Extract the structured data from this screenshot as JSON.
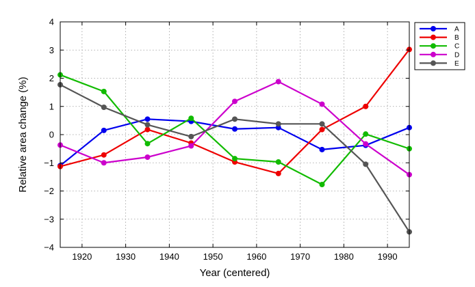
{
  "chart_data": {
    "type": "line",
    "xlabel": "Year (centered)",
    "ylabel": "Relative area change (%)",
    "xlim": [
      1915,
      1995
    ],
    "ylim": [
      -4,
      4
    ],
    "xticks": [
      1920,
      1930,
      1940,
      1950,
      1960,
      1970,
      1980,
      1990
    ],
    "yticks": [
      -4,
      -3,
      -2,
      -1,
      0,
      1,
      2,
      3,
      4
    ],
    "grid": true,
    "legend_position": "top-right",
    "x": [
      1915,
      1925,
      1935,
      1945,
      1955,
      1965,
      1975,
      1985,
      1995
    ],
    "series": [
      {
        "name": "A",
        "color": "#0000ee",
        "values": [
          -1.1,
          0.15,
          0.55,
          0.47,
          0.2,
          0.25,
          -0.53,
          -0.38,
          0.25
        ]
      },
      {
        "name": "B",
        "color": "#ee0000",
        "values": [
          -1.13,
          -0.72,
          0.18,
          -0.3,
          -0.97,
          -1.38,
          0.18,
          1.0,
          3.02
        ]
      },
      {
        "name": "C",
        "color": "#11bb00",
        "values": [
          2.12,
          1.53,
          -0.32,
          0.58,
          -0.85,
          -0.97,
          -1.77,
          0.02,
          -0.5
        ]
      },
      {
        "name": "D",
        "color": "#cc00cc",
        "values": [
          -0.37,
          -1.0,
          -0.8,
          -0.4,
          1.18,
          1.88,
          1.08,
          -0.33,
          -1.42
        ]
      },
      {
        "name": "E",
        "color": "#555555",
        "values": [
          1.77,
          0.97,
          0.35,
          -0.07,
          0.55,
          0.38,
          0.38,
          -1.05,
          -3.45
        ]
      }
    ]
  }
}
